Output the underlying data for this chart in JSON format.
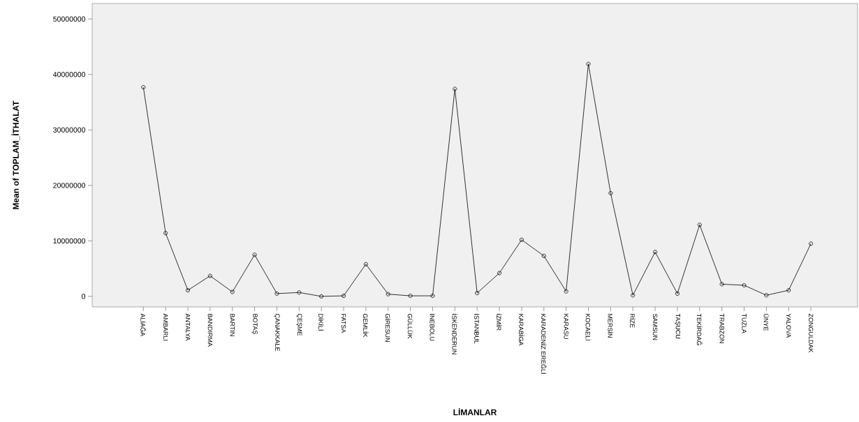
{
  "chart_data": {
    "type": "line",
    "xlabel": "LİMANLAR",
    "ylabel": "Mean of TOPLAM_İTHALAT",
    "categories": [
      "ALİAĞA",
      "AMBARLI",
      "ANTALYA",
      "BANDIRMA",
      "BARTIN",
      "BOTAŞ",
      "ÇANAKKALE",
      "ÇEŞME",
      "DİKİLİ",
      "FATSA",
      "GEMLİK",
      "GİRESUN",
      "GÜLLÜK",
      "İNEBOLU",
      "İSKENDERUN",
      "İSTANBUL",
      "İZMİR",
      "KARABİGA",
      "KARADENİZ EREĞLİ",
      "KARASU",
      "KOCAELİ",
      "MERSİN",
      "RİZE",
      "SAMSUN",
      "TAŞUCU",
      "TEKİRDAĞ",
      "TRABZON",
      "TUZLA",
      "ÜNYE",
      "YALOVA",
      "ZONGULDAK"
    ],
    "values": [
      37700000,
      11400000,
      1100000,
      3700000,
      800000,
      7500000,
      500000,
      700000,
      0,
      100000,
      5800000,
      400000,
      100000,
      100000,
      37400000,
      600000,
      4200000,
      10200000,
      7300000,
      900000,
      41900000,
      18600000,
      200000,
      8000000,
      500000,
      12900000,
      2200000,
      2000000,
      200000,
      1100000,
      9500000
    ],
    "color": "#000000",
    "marker": "circle",
    "line_style": "solid",
    "ylim": [
      -1900000,
      52800000
    ],
    "yticks": [
      {
        "value": 0,
        "label": "0"
      },
      {
        "value": 10000000,
        "label": "10000000"
      },
      {
        "value": 20000000,
        "label": "20000000"
      },
      {
        "value": 30000000,
        "label": "30000000"
      },
      {
        "value": 40000000,
        "label": "40000000"
      },
      {
        "value": 50000000,
        "label": "50000000"
      }
    ]
  }
}
